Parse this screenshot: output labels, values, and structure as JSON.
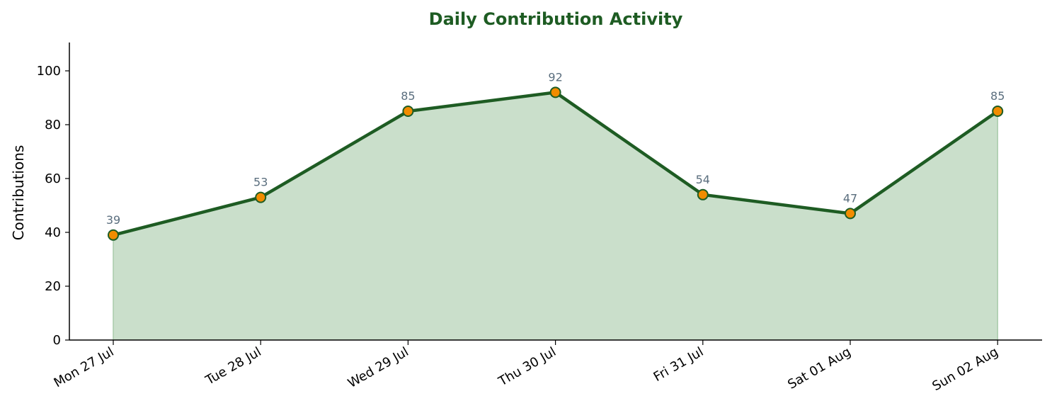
{
  "chart_data": {
    "type": "area",
    "title": "Daily Contribution Activity",
    "xlabel": "",
    "ylabel": "Contributions",
    "categories": [
      "Mon 27 Jul",
      "Tue 28 Jul",
      "Wed 29 Jul",
      "Thu 30 Jul",
      "Fri 31 Jul",
      "Sat 01 Aug",
      "Sun 02 Aug"
    ],
    "series": [
      {
        "values": [
          39,
          53,
          85,
          92,
          54,
          47,
          85
        ]
      }
    ],
    "ylim": [
      0,
      110
    ],
    "yticks": [
      0,
      20,
      40,
      60,
      80,
      100
    ],
    "grid": false,
    "legend": "none",
    "data_labels": true
  },
  "colors": {
    "line": "#1e5c23",
    "fill": "#cadfcb",
    "marker": "#f28c00",
    "marker_edge": "#1e5c23",
    "title": "#1e5c23",
    "data_label": "#5a6e7e",
    "axis": "#000000"
  }
}
